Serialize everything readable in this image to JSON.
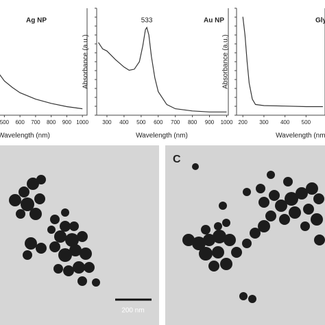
{
  "chart_data": [
    {
      "type": "line",
      "title": "Ag NP",
      "x_label": "Wavelength (nm)",
      "x": [
        420,
        450,
        500,
        550,
        600,
        700,
        800,
        900,
        1000
      ],
      "values": [
        0.55,
        0.42,
        0.32,
        0.26,
        0.21,
        0.15,
        0.11,
        0.08,
        0.06
      ],
      "color": "#333333",
      "xlim": [
        450,
        1030
      ],
      "ylim": [
        0,
        1
      ],
      "xticks": [
        500,
        600,
        700,
        800,
        900,
        1000
      ]
    },
    {
      "type": "line",
      "title": "Au NP",
      "x_label": "Wavelength (nm)",
      "y_label": "Absorbance (a.u.)",
      "annotation": "533",
      "x": [
        250,
        275,
        300,
        350,
        400,
        430,
        460,
        490,
        510,
        525,
        533,
        545,
        560,
        580,
        600,
        650,
        700,
        800,
        900,
        1000
      ],
      "values": [
        0.68,
        0.62,
        0.6,
        0.52,
        0.45,
        0.42,
        0.43,
        0.5,
        0.65,
        0.8,
        0.82,
        0.75,
        0.55,
        0.35,
        0.22,
        0.1,
        0.06,
        0.04,
        0.03,
        0.03
      ],
      "color": "#333333",
      "xlim": [
        240,
        1010
      ],
      "ylim": [
        0,
        1
      ],
      "xticks": [
        300,
        400,
        500,
        600,
        700,
        800,
        900,
        1000
      ]
    },
    {
      "type": "line",
      "title": "Gly",
      "x_label": "Wavelength (nm)",
      "y_label": "Absorbance (a.u.)",
      "x": [
        200,
        210,
        220,
        230,
        245,
        260,
        300,
        400,
        500,
        580
      ],
      "values": [
        0.92,
        0.75,
        0.5,
        0.3,
        0.15,
        0.1,
        0.09,
        0.085,
        0.08,
        0.08
      ],
      "color": "#333333",
      "xlim": [
        170,
        590
      ],
      "ylim": [
        0,
        1
      ],
      "xticks": [
        200,
        300,
        400,
        500
      ]
    }
  ],
  "images": [
    {
      "scale_bar": "200 nm"
    },
    {
      "panel_label": "C"
    }
  ]
}
